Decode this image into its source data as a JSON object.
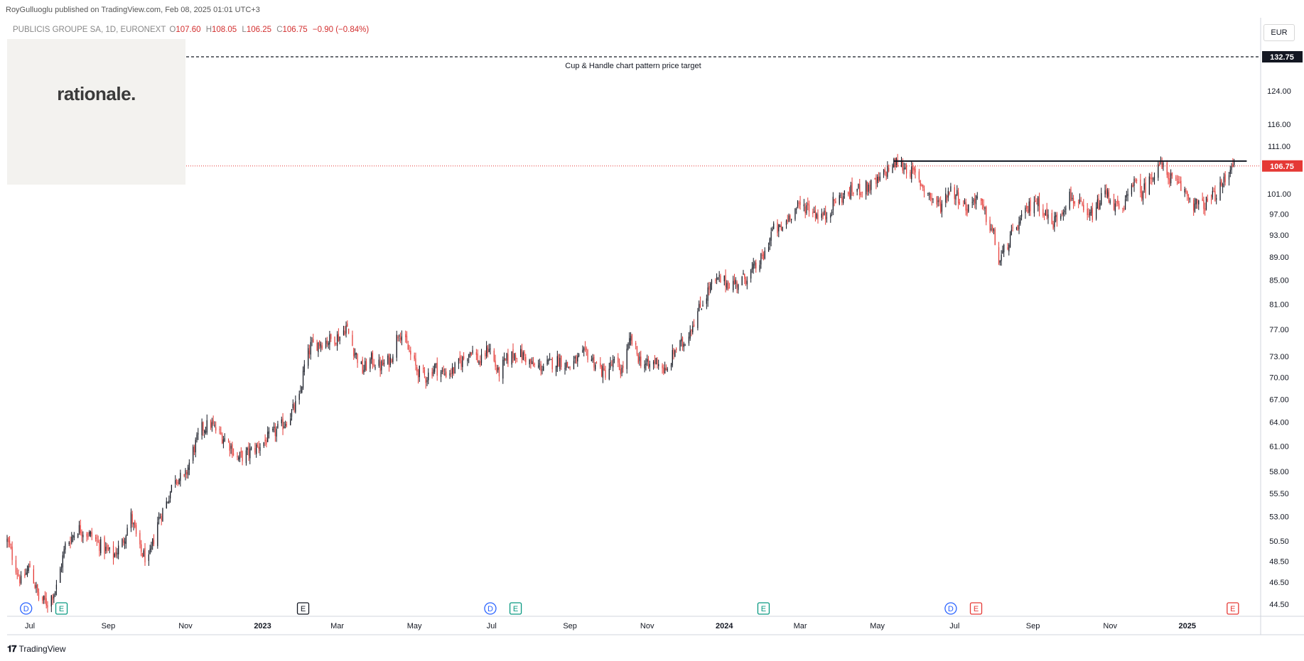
{
  "header": {
    "publisher": "RoyGulluoglu published on TradingView.com, Feb 08, 2025 01:01 UTC+3",
    "symbol": "PUBLICIS GROUPE SA, 1D, EURONEXT",
    "open_label": "O",
    "open": "107.60",
    "high_label": "H",
    "high": "108.05",
    "low_label": "L",
    "low": "106.25",
    "close_label": "C",
    "close": "106.75",
    "change": "−0.90 (−0.84%)"
  },
  "logo": {
    "text": "rationale."
  },
  "currency": "EUR",
  "footer": {
    "brand": "TradingView",
    "icon": "tradingview-logo-icon"
  },
  "colors": {
    "up": "#131722",
    "down": "#e53935",
    "last_price": "#e53935",
    "target_line": "#131722"
  },
  "annotations": {
    "target_label": "Cup & Handle chart pattern price target",
    "target_price": "132.75",
    "last_price": "106.75"
  },
  "chart_data": {
    "type": "candlestick",
    "y_scale": "log",
    "ylim": [
      44.5,
      136
    ],
    "x_range": [
      "2022-06-13",
      "2025-02-28"
    ],
    "y_ticks": [
      "124.00",
      "116.00",
      "111.00",
      "101.00",
      "97.00",
      "93.00",
      "89.00",
      "85.00",
      "81.00",
      "77.00",
      "73.00",
      "70.00",
      "67.00",
      "64.00",
      "61.00",
      "58.00",
      "55.50",
      "53.00",
      "50.50",
      "48.50",
      "46.50",
      "44.50"
    ],
    "x_ticks": [
      {
        "label": "Jul",
        "date": "2022-07-01",
        "bold": false
      },
      {
        "label": "Sep",
        "date": "2022-09-01",
        "bold": false
      },
      {
        "label": "Nov",
        "date": "2022-11-01",
        "bold": false
      },
      {
        "label": "2023",
        "date": "2023-01-01",
        "bold": true
      },
      {
        "label": "Mar",
        "date": "2023-03-01",
        "bold": false
      },
      {
        "label": "May",
        "date": "2023-05-01",
        "bold": false
      },
      {
        "label": "Jul",
        "date": "2023-07-01",
        "bold": false
      },
      {
        "label": "Sep",
        "date": "2023-09-01",
        "bold": false
      },
      {
        "label": "Nov",
        "date": "2023-11-01",
        "bold": false
      },
      {
        "label": "2024",
        "date": "2024-01-01",
        "bold": true
      },
      {
        "label": "Mar",
        "date": "2024-03-01",
        "bold": false
      },
      {
        "label": "May",
        "date": "2024-05-01",
        "bold": false
      },
      {
        "label": "Jul",
        "date": "2024-07-01",
        "bold": false
      },
      {
        "label": "Sep",
        "date": "2024-09-01",
        "bold": false
      },
      {
        "label": "Nov",
        "date": "2024-11-01",
        "bold": false
      },
      {
        "label": "2025",
        "date": "2025-01-01",
        "bold": true
      }
    ],
    "close_path": [
      [
        "2022-06-13",
        50.5
      ],
      [
        "2022-06-24",
        46.5
      ],
      [
        "2022-07-01",
        48.0
      ],
      [
        "2022-07-08",
        45.0
      ],
      [
        "2022-07-15",
        44.6
      ],
      [
        "2022-07-22",
        46.0
      ],
      [
        "2022-07-29",
        50.0
      ],
      [
        "2022-08-08",
        51.8
      ],
      [
        "2022-08-19",
        51.0
      ],
      [
        "2022-08-26",
        50.0
      ],
      [
        "2022-09-05",
        49.0
      ],
      [
        "2022-09-12",
        50.3
      ],
      [
        "2022-09-19",
        53.0
      ],
      [
        "2022-09-26",
        49.5
      ],
      [
        "2022-10-03",
        48.5
      ],
      [
        "2022-10-10",
        52.5
      ],
      [
        "2022-10-17",
        54.5
      ],
      [
        "2022-10-24",
        57.5
      ],
      [
        "2022-10-31",
        57.0
      ],
      [
        "2022-11-07",
        60.5
      ],
      [
        "2022-11-14",
        63.2
      ],
      [
        "2022-11-21",
        63.8
      ],
      [
        "2022-11-28",
        62.5
      ],
      [
        "2022-12-05",
        61.5
      ],
      [
        "2022-12-12",
        59.5
      ],
      [
        "2022-12-19",
        60.0
      ],
      [
        "2023-01-02",
        61.5
      ],
      [
        "2023-01-09",
        62.5
      ],
      [
        "2023-01-16",
        63.5
      ],
      [
        "2023-01-23",
        65.0
      ],
      [
        "2023-01-30",
        67.0
      ],
      [
        "2023-02-03",
        71.5
      ],
      [
        "2023-02-08",
        74.5
      ],
      [
        "2023-02-15",
        75.0
      ],
      [
        "2023-02-24",
        75.5
      ],
      [
        "2023-03-03",
        76.0
      ],
      [
        "2023-03-08",
        77.5
      ],
      [
        "2023-03-14",
        74.0
      ],
      [
        "2023-03-21",
        71.0
      ],
      [
        "2023-03-28",
        72.5
      ],
      [
        "2023-04-04",
        71.5
      ],
      [
        "2023-04-12",
        72.5
      ],
      [
        "2023-04-19",
        77.0
      ],
      [
        "2023-04-26",
        74.0
      ],
      [
        "2023-05-03",
        71.0
      ],
      [
        "2023-05-10",
        70.0
      ],
      [
        "2023-05-17",
        71.5
      ],
      [
        "2023-05-24",
        70.5
      ],
      [
        "2023-06-01",
        71.0
      ],
      [
        "2023-06-08",
        72.5
      ],
      [
        "2023-06-15",
        74.0
      ],
      [
        "2023-06-22",
        72.0
      ],
      [
        "2023-06-29",
        74.5
      ],
      [
        "2023-07-06",
        70.5
      ],
      [
        "2023-07-13",
        72.5
      ],
      [
        "2023-07-20",
        73.5
      ],
      [
        "2023-07-27",
        73.0
      ],
      [
        "2023-08-03",
        71.5
      ],
      [
        "2023-08-10",
        71.5
      ],
      [
        "2023-08-17",
        72.0
      ],
      [
        "2023-08-24",
        72.5
      ],
      [
        "2023-08-31",
        71.5
      ],
      [
        "2023-09-07",
        72.5
      ],
      [
        "2023-09-14",
        73.5
      ],
      [
        "2023-09-21",
        72.0
      ],
      [
        "2023-09-28",
        70.5
      ],
      [
        "2023-10-05",
        72.0
      ],
      [
        "2023-10-12",
        71.0
      ],
      [
        "2023-10-19",
        75.5
      ],
      [
        "2023-10-26",
        72.5
      ],
      [
        "2023-11-02",
        71.5
      ],
      [
        "2023-11-09",
        72.5
      ],
      [
        "2023-11-16",
        70.5
      ],
      [
        "2023-11-23",
        74.0
      ],
      [
        "2023-11-30",
        75.0
      ],
      [
        "2023-12-07",
        78.0
      ],
      [
        "2023-12-14",
        81.0
      ],
      [
        "2023-12-21",
        84.0
      ],
      [
        "2023-12-28",
        85.0
      ],
      [
        "2024-01-04",
        84.5
      ],
      [
        "2024-01-11",
        84.5
      ],
      [
        "2024-01-18",
        85.5
      ],
      [
        "2024-01-25",
        87.0
      ],
      [
        "2024-02-01",
        89.0
      ],
      [
        "2024-02-08",
        94.0
      ],
      [
        "2024-02-15",
        94.0
      ],
      [
        "2024-02-22",
        97.0
      ],
      [
        "2024-02-29",
        98.5
      ],
      [
        "2024-03-07",
        98.5
      ],
      [
        "2024-03-14",
        97.0
      ],
      [
        "2024-03-21",
        96.5
      ],
      [
        "2024-03-28",
        99.5
      ],
      [
        "2024-04-04",
        100.5
      ],
      [
        "2024-04-11",
        101.5
      ],
      [
        "2024-04-18",
        102.0
      ],
      [
        "2024-04-25",
        102.5
      ],
      [
        "2024-05-02",
        103.5
      ],
      [
        "2024-05-09",
        106.0
      ],
      [
        "2024-05-16",
        107.5
      ],
      [
        "2024-05-23",
        106.5
      ],
      [
        "2024-05-30",
        105.0
      ],
      [
        "2024-06-06",
        102.5
      ],
      [
        "2024-06-13",
        100.0
      ],
      [
        "2024-06-20",
        98.5
      ],
      [
        "2024-06-27",
        102.0
      ],
      [
        "2024-07-04",
        100.5
      ],
      [
        "2024-07-11",
        98.0
      ],
      [
        "2024-07-18",
        100.5
      ],
      [
        "2024-07-25",
        97.0
      ],
      [
        "2024-08-01",
        93.0
      ],
      [
        "2024-08-05",
        88.0
      ],
      [
        "2024-08-12",
        91.5
      ],
      [
        "2024-08-19",
        94.5
      ],
      [
        "2024-08-26",
        97.0
      ],
      [
        "2024-09-02",
        100.0
      ],
      [
        "2024-09-09",
        98.0
      ],
      [
        "2024-09-16",
        95.0
      ],
      [
        "2024-09-23",
        97.5
      ],
      [
        "2024-09-30",
        100.5
      ],
      [
        "2024-10-07",
        99.0
      ],
      [
        "2024-10-14",
        96.0
      ],
      [
        "2024-10-21",
        98.0
      ],
      [
        "2024-10-28",
        101.5
      ],
      [
        "2024-11-04",
        99.0
      ],
      [
        "2024-11-11",
        97.0
      ],
      [
        "2024-11-18",
        104.0
      ],
      [
        "2024-11-25",
        101.0
      ],
      [
        "2024-12-02",
        103.5
      ],
      [
        "2024-12-09",
        107.5
      ],
      [
        "2024-12-16",
        105.0
      ],
      [
        "2024-12-23",
        103.0
      ],
      [
        "2024-12-30",
        101.5
      ],
      [
        "2025-01-06",
        99.0
      ],
      [
        "2025-01-13",
        98.5
      ],
      [
        "2025-01-20",
        100.0
      ],
      [
        "2025-01-27",
        102.0
      ],
      [
        "2025-02-03",
        105.5
      ],
      [
        "2025-02-05",
        108.0
      ],
      [
        "2025-02-07",
        106.75
      ]
    ],
    "horizontal_lines": [
      {
        "name": "target",
        "price": 132.75,
        "style": "dashed"
      },
      {
        "name": "resistance",
        "price": 107.8,
        "style": "solid",
        "from": "2024-05-14",
        "to": "2025-02-17"
      },
      {
        "name": "last-price",
        "price": 106.75,
        "style": "dotted"
      }
    ],
    "event_markers": [
      {
        "label": "D",
        "date": "2022-06-28",
        "kind": "dividend",
        "color": "#2962ff"
      },
      {
        "label": "E",
        "date": "2022-07-26",
        "kind": "earnings",
        "color": "#089981"
      },
      {
        "label": "E",
        "date": "2023-02-02",
        "kind": "earnings",
        "color": "#131722"
      },
      {
        "label": "D",
        "date": "2023-06-30",
        "kind": "dividend",
        "color": "#2962ff"
      },
      {
        "label": "E",
        "date": "2023-07-20",
        "kind": "earnings",
        "color": "#089981"
      },
      {
        "label": "E",
        "date": "2024-02-01",
        "kind": "earnings",
        "color": "#089981"
      },
      {
        "label": "D",
        "date": "2024-06-28",
        "kind": "dividend",
        "color": "#2962ff"
      },
      {
        "label": "E",
        "date": "2024-07-18",
        "kind": "earnings",
        "color": "#e53935"
      },
      {
        "label": "E",
        "date": "2025-02-06",
        "kind": "earnings",
        "color": "#e53935"
      }
    ]
  }
}
